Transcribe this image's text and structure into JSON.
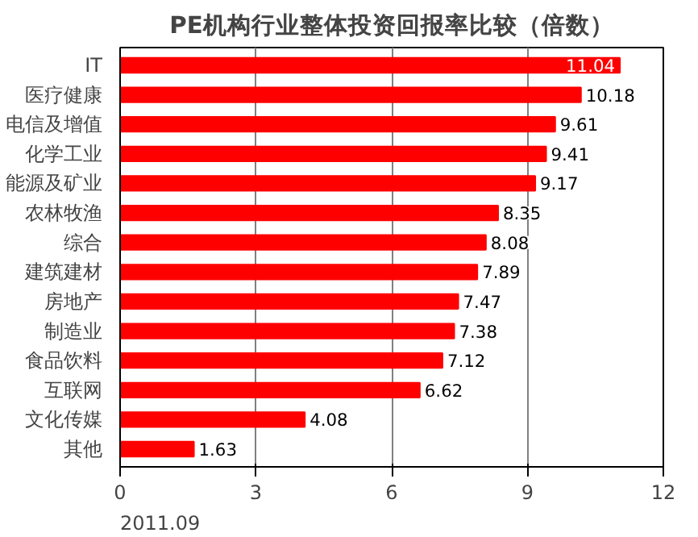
{
  "chart_data": {
    "type": "bar",
    "orientation": "horizontal",
    "title": "PE机构行业整体投资回报率比较（倍数）",
    "categories": [
      "IT",
      "医疗健康",
      "电信及增值",
      "化学工业",
      "能源及矿业",
      "农林牧渔",
      "综合",
      "建筑建材",
      "房地产",
      "制造业",
      "食品饮料",
      "互联网",
      "文化传媒",
      "其他"
    ],
    "values": [
      11.04,
      10.18,
      9.61,
      9.41,
      9.17,
      8.35,
      8.08,
      7.89,
      7.47,
      7.38,
      7.12,
      6.62,
      4.08,
      1.63
    ],
    "color": "#ff0000",
    "xlim": [
      0,
      12
    ],
    "xticks": [
      0,
      3,
      6,
      9,
      12
    ],
    "grid": "x",
    "data_labels": true,
    "annotations": [
      "2011.09"
    ]
  }
}
